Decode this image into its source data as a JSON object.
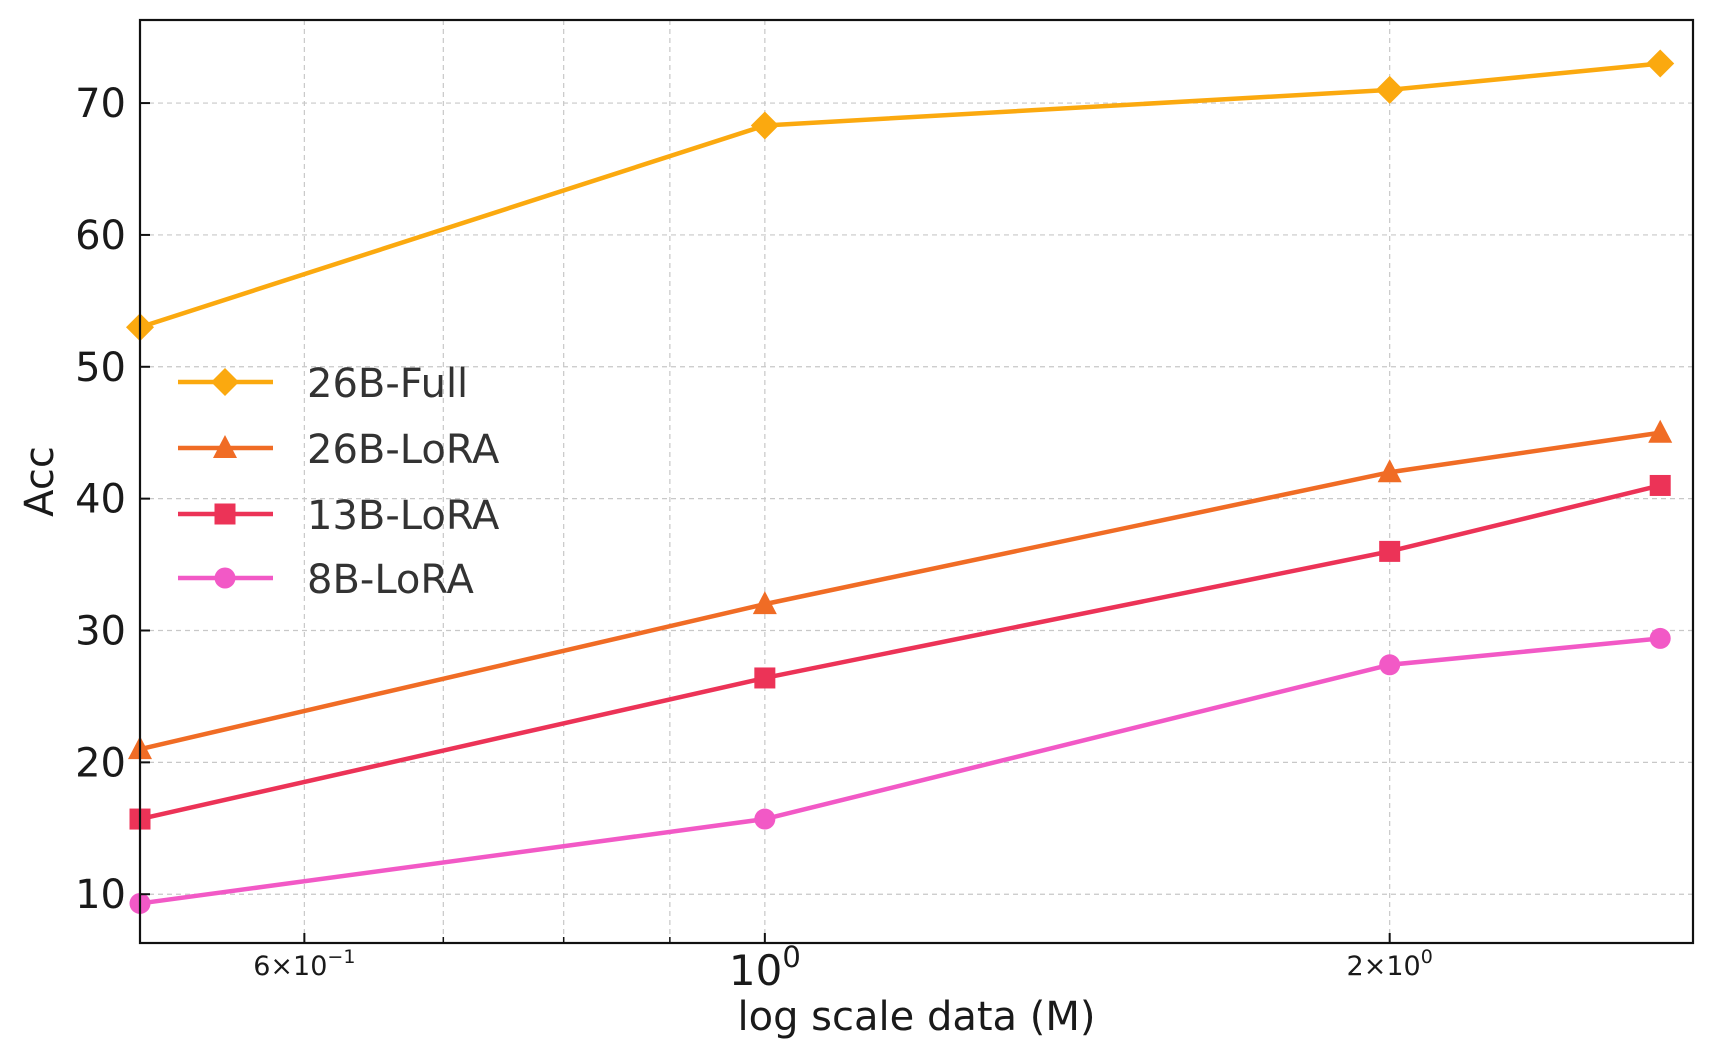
{
  "chart_data": {
    "type": "line",
    "title": "",
    "xlabel": "log scale data (M)",
    "ylabel": "Acc",
    "xscale": "log",
    "xlim": [
      0.5,
      2.8
    ],
    "ylim": [
      6.3,
      76.3
    ],
    "grid": true,
    "legend_position": "center-left",
    "x": [
      0.5,
      1.0,
      2.0,
      2.7
    ],
    "x_major_ticks": [
      {
        "value": 0.6,
        "base": "6",
        "exp": "−1",
        "size": "small"
      },
      {
        "value": 1.0,
        "base": "10",
        "exp": "0",
        "size": "large",
        "pure": true
      },
      {
        "value": 2.0,
        "base": "2",
        "exp": "0",
        "size": "small"
      }
    ],
    "x_minor_ticks": [
      0.5,
      0.7,
      0.8,
      0.9
    ],
    "y_ticks": [
      10,
      20,
      30,
      40,
      50,
      60,
      70
    ],
    "series": [
      {
        "name": "26B-Full",
        "values": [
          53,
          68.3,
          71,
          73
        ],
        "color": "#FBA90F",
        "marker": "diamond"
      },
      {
        "name": "26B-LoRA",
        "values": [
          21,
          32,
          42,
          45
        ],
        "color": "#F06C25",
        "marker": "triangle"
      },
      {
        "name": "13B-LoRA",
        "values": [
          15.7,
          26.4,
          36,
          41
        ],
        "color": "#EC3357",
        "marker": "square"
      },
      {
        "name": "8B-LoRA",
        "values": [
          9.3,
          15.7,
          27.4,
          29.4
        ],
        "color": "#F259C6",
        "marker": "circle"
      }
    ]
  }
}
